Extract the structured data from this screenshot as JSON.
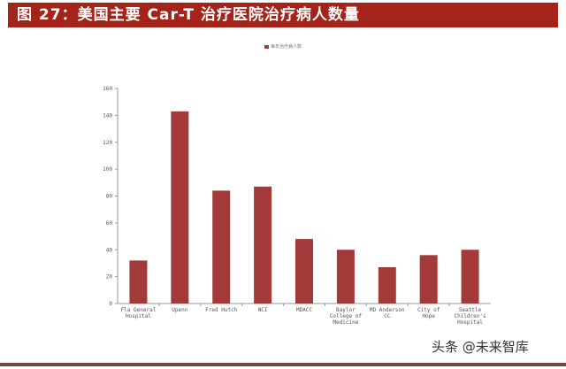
{
  "title": "图 27：美国主要 Car-T 治疗医院治疗病人数量",
  "watermark": "头条 @未来智库",
  "chart_data": {
    "type": "bar",
    "title": "",
    "legend": [
      "每年治疗病人数"
    ],
    "legend_position": "top",
    "categories": [
      "Fla General Hospital",
      "Upenn",
      "Fred Hutch",
      "NCI",
      "MDACC",
      "Baylor College of Medicine",
      "MD Anderson CC",
      "City of Hope",
      "Seattle Children's Hospital"
    ],
    "series": [
      {
        "name": "每年治疗病人数",
        "values": [
          32,
          143,
          84,
          87,
          48,
          40,
          27,
          36,
          40
        ],
        "color": "#a33a3a"
      }
    ],
    "ylim": [
      0,
      160
    ],
    "yticks": [
      0,
      20,
      40,
      60,
      80,
      100,
      120,
      140,
      160
    ],
    "grid": false
  }
}
